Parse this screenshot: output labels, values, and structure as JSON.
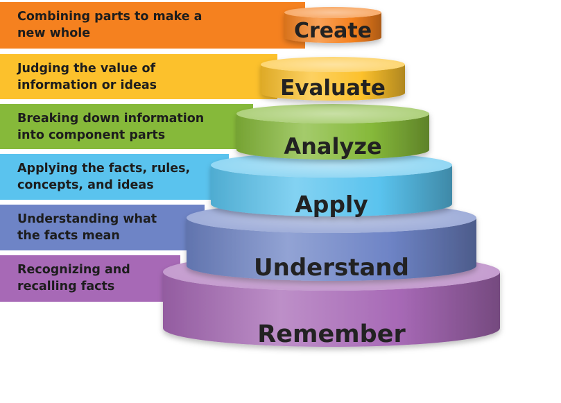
{
  "levels": [
    {
      "name": "Create",
      "description_lines": [
        "Combining parts to make a",
        "new whole"
      ],
      "color": "#F5811F"
    },
    {
      "name": "Evaluate",
      "description_lines": [
        "Judging the value of",
        "information or ideas"
      ],
      "color": "#FCC12C"
    },
    {
      "name": "Analyze",
      "description_lines": [
        "Breaking down information",
        "into component parts"
      ],
      "color": "#86B93A"
    },
    {
      "name": "Apply",
      "description_lines": [
        "Applying the facts, rules,",
        "concepts, and ideas"
      ],
      "color": "#5AC3EE"
    },
    {
      "name": "Understand",
      "description_lines": [
        "Understanding what",
        "the facts mean"
      ],
      "color": "#6E84C6"
    },
    {
      "name": "Remember",
      "description_lines": [
        "Recognizing and",
        "recalling facts"
      ],
      "color": "#A769B6"
    }
  ]
}
